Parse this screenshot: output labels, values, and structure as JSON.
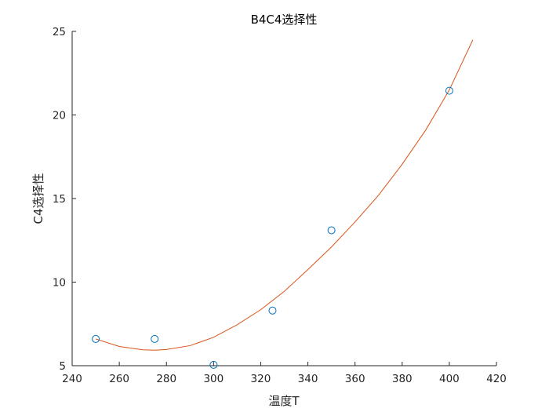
{
  "chart_data": {
    "type": "scatter",
    "title": "B4C4选择性",
    "xlabel": "温度T",
    "ylabel": "C4选择性",
    "xlim": [
      240,
      420
    ],
    "ylim": [
      5,
      25
    ],
    "xticks": [
      240,
      260,
      280,
      300,
      320,
      340,
      360,
      380,
      400,
      420
    ],
    "yticks": [
      5,
      10,
      15,
      20,
      25
    ],
    "grid": false,
    "legend": "none",
    "series": [
      {
        "type": "scatter",
        "marker": "circle-open",
        "color": "#0072BD",
        "x": [
          250,
          275,
          300,
          325,
          350,
          400
        ],
        "y": [
          6.6,
          6.6,
          5.05,
          8.3,
          13.1,
          21.45
        ]
      },
      {
        "type": "line",
        "color": "#D95319",
        "x": [
          250,
          260,
          270,
          275,
          280,
          290,
          300,
          310,
          320,
          330,
          340,
          350,
          360,
          370,
          380,
          390,
          400,
          410
        ],
        "y": [
          6.6,
          6.15,
          5.95,
          5.93,
          5.97,
          6.2,
          6.7,
          7.45,
          8.35,
          9.45,
          10.75,
          12.1,
          13.6,
          15.2,
          17.05,
          19.1,
          21.5,
          24.5
        ]
      }
    ]
  }
}
